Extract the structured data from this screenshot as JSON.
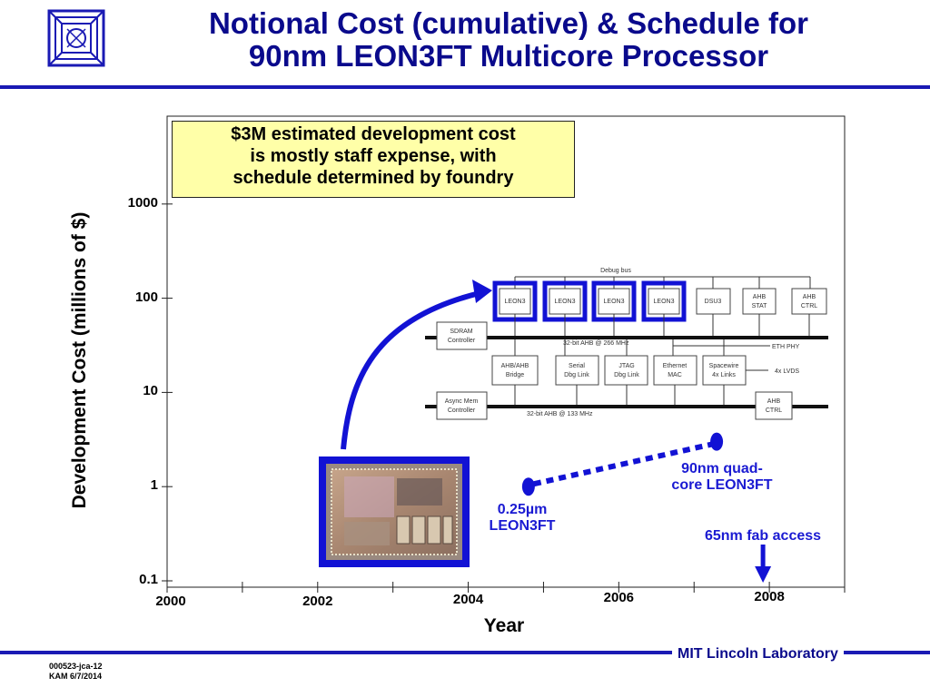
{
  "slide": {
    "title_line1": "Notional Cost (cumulative) & Schedule for",
    "title_line2": "90nm LEON3FT Multicore Processor",
    "footer_org": "MIT Lincoln Laboratory",
    "footnote_line1": "000523-jca-12",
    "footnote_line2": "KAM 6/7/2014",
    "colors": {
      "title": "#0a0a8c",
      "rule": "#1a1ab4",
      "annotation": "#1a1ad2",
      "callout_fill": "#ffffa8"
    }
  },
  "callout": {
    "line1": "$3M estimated development cost",
    "line2": "is mostly staff expense, with",
    "line3": "schedule determined by foundry"
  },
  "annotations": {
    "p1_line1": "0.25µm",
    "p1_line2": "LEON3FT",
    "p2_line1": "90nm quad-",
    "p2_line2": "core LEON3FT",
    "fab_access": "65nm fab access"
  },
  "block_diagram": {
    "debug_bus": "Debug bus",
    "cpus": [
      "LEON3",
      "LEON3",
      "LEON3",
      "LEON3"
    ],
    "dsu": "DSU3",
    "ahb_stat": [
      "AHB",
      "STAT"
    ],
    "ahb_ctrl_top": [
      "AHB",
      "CTRL"
    ],
    "sdram": [
      "SDRAM",
      "Controller"
    ],
    "bus_fast": "32-bit AHB @ 266 MHz",
    "eth_phy": "ETH PHY",
    "bridge": [
      "AHB/AHB",
      "Bridge"
    ],
    "serial": [
      "Serial",
      "Dbg Link"
    ],
    "jtag": [
      "JTAG",
      "Dbg Link"
    ],
    "ethernet": [
      "Ethernet",
      "MAC"
    ],
    "spacewire": [
      "Spacewire",
      "4x Links"
    ],
    "lvds": "4x LVDS",
    "async": [
      "Async Mem",
      "Controller"
    ],
    "bus_slow": "32-bit AHB @ 133 MHz",
    "ahb_ctrl_bottom": [
      "AHB",
      "CTRL"
    ]
  },
  "chart_data": {
    "type": "scatter",
    "title": "",
    "xlabel": "Year",
    "ylabel": "Development Cost (millions of $)",
    "y_scale": "log",
    "ylim": [
      0.1,
      10000
    ],
    "xlim": [
      2000,
      2009
    ],
    "y_ticks": [
      {
        "value": 0.1,
        "label": "0.1"
      },
      {
        "value": 1,
        "label": "1"
      },
      {
        "value": 10,
        "label": "10"
      },
      {
        "value": 100,
        "label": "100"
      },
      {
        "value": 1000,
        "label": "1000"
      }
    ],
    "x_ticks": [
      {
        "value": 2000,
        "label": "2000"
      },
      {
        "value": 2002,
        "label": "2002"
      },
      {
        "value": 2004,
        "label": "2004"
      },
      {
        "value": 2006,
        "label": "2006"
      },
      {
        "value": 2008,
        "label": "2008"
      }
    ],
    "points": [
      {
        "x": 2004.8,
        "y": 1.0
      },
      {
        "x": 2007.3,
        "y": 3.0
      }
    ],
    "connector": "dotted",
    "marker_x_year": 2008
  }
}
